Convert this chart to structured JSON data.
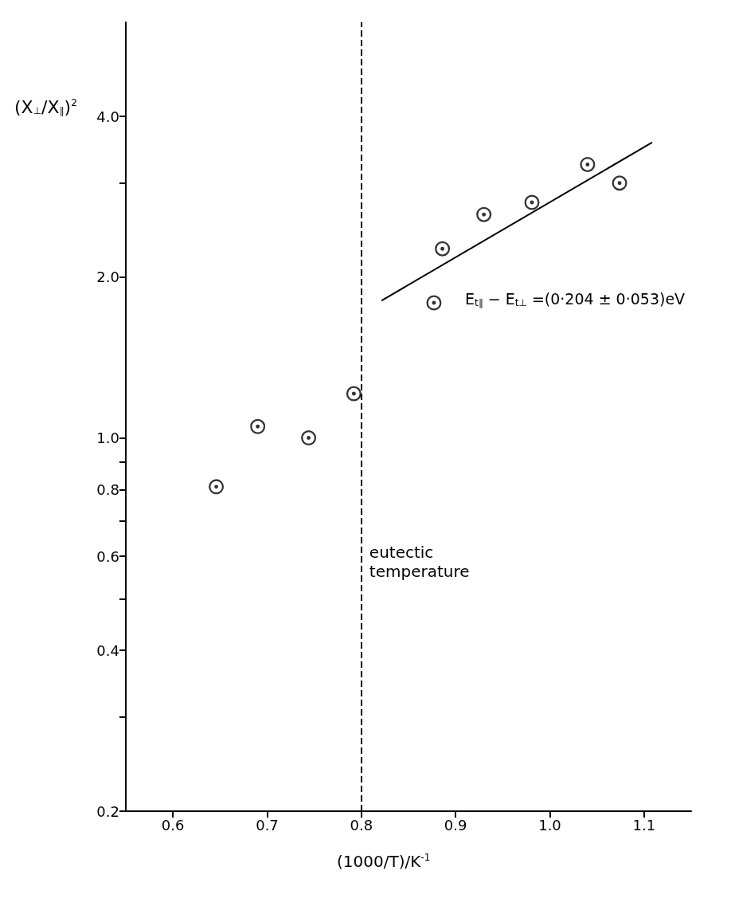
{
  "chart_data": {
    "type": "scatter",
    "xlabel": "(1000/T)/K$^{-1}$",
    "ylabel": "(X$_{⊥}$/X$_{∥}$)$^{2}$",
    "annotations": [
      "E$_{t∥}$ − E$_{t⊥}$ =(0·204 ± 0·053)eV"
    ],
    "series": [
      {
        "color": "#000000",
        "x": [
          0.646,
          0.69,
          0.744,
          0.792,
          0.877,
          0.886,
          0.93,
          0.981,
          1.04,
          1.074
        ],
        "values": [
          0.81,
          1.05,
          1.0,
          1.21,
          1.79,
          2.26,
          2.62,
          2.76,
          3.25,
          3.0
        ]
      },
      {
        "type": "line",
        "color": "#000000",
        "marker": "none",
        "line_style": "solid",
        "x": [
          0.822,
          1.108
        ],
        "values": [
          1.81,
          3.57
        ]
      }
    ],
    "ref_lines": [
      {
        "axis": "x",
        "value": 0.8,
        "label": "eutectic temperature",
        "color": "#000000",
        "line_style": "dashed"
      }
    ],
    "marker": "circle",
    "log": "y",
    "grid": false,
    "xlim": [
      0.55,
      1.15
    ],
    "xticks": [
      0.6,
      0.7,
      0.8,
      0.9,
      {
        "value": 1.0,
        "label": "1.0"
      },
      1.1
    ],
    "ylim": [
      0.2,
      6
    ],
    "yticks": [
      0.2,
      {
        "value": 0.3,
        "label": null
      },
      0.4,
      {
        "value": 0.5,
        "label": null
      },
      0.6,
      {
        "value": 0.7,
        "label": null
      },
      0.8,
      {
        "value": 0.9,
        "label": null
      },
      {
        "value": 1.0,
        "label": "1.0"
      },
      {
        "value": 2.0,
        "label": "2.0"
      },
      {
        "value": 3.0,
        "label": null
      },
      {
        "value": 4.0,
        "label": "4.0"
      }
    ]
  }
}
